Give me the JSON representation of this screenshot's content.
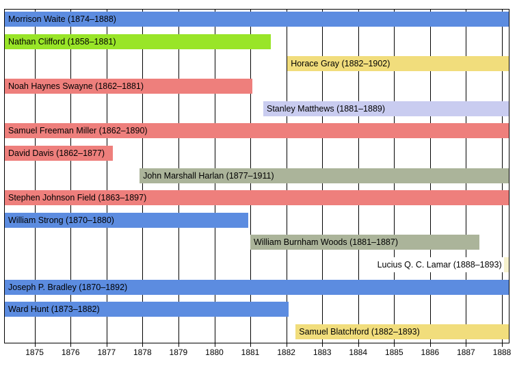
{
  "chart_data": {
    "type": "bar",
    "variant": "horizontal-timeline-gantt",
    "title": "",
    "xlabel": "",
    "ylabel": "",
    "grid": "vertical-solid-black",
    "x_axis": {
      "min": 1874.17,
      "max": 1888.19,
      "ticks": [
        1875,
        1876,
        1877,
        1878,
        1879,
        1880,
        1881,
        1882,
        1883,
        1884,
        1885,
        1886,
        1887,
        1888
      ]
    },
    "bars": [
      {
        "name": "morrison-waite",
        "label": "Morrison Waite (1874–1888)",
        "start": 1874.17,
        "end": 1888.22,
        "color": "#5c8ce0",
        "label_position": "inside"
      },
      {
        "name": "nathan-clifford",
        "label": "Nathan Clifford (1858–1881)",
        "start": 1858.5,
        "end": 1881.56,
        "color": "#99e528",
        "label_position": "inside"
      },
      {
        "name": "horace-gray",
        "label": "Horace Gray (1882–1902)",
        "start": 1882.03,
        "end": 1902.5,
        "color": "#f1dd7c",
        "label_position": "inside"
      },
      {
        "name": "noah-haynes-swayne",
        "label": "Noah Haynes Swayne (1862–1881)",
        "start": 1862.06,
        "end": 1881.05,
        "color": "#ee7f7c",
        "label_position": "inside"
      },
      {
        "name": "stanley-matthews",
        "label": "Stanley Matthews (1881–1889)",
        "start": 1881.36,
        "end": 1889.2,
        "color": "#c9ccf0",
        "label_position": "inside"
      },
      {
        "name": "samuel-freeman-miller",
        "label": "Samuel Freeman Miller (1862–1890)",
        "start": 1862.54,
        "end": 1890.8,
        "color": "#ee7f7c",
        "label_position": "inside"
      },
      {
        "name": "david-davis",
        "label": "David Davis (1862–1877)",
        "start": 1862.8,
        "end": 1877.18,
        "color": "#ee7f7c",
        "label_position": "inside"
      },
      {
        "name": "john-marshall-harlan",
        "label": "John Marshall Harlan (1877–1911)",
        "start": 1877.92,
        "end": 1911.8,
        "color": "#abb49a",
        "label_position": "inside"
      },
      {
        "name": "stephen-johnson-field",
        "label": "Stephen Johnson Field (1863–1897)",
        "start": 1863.37,
        "end": 1897.9,
        "color": "#ee7f7c",
        "label_position": "inside"
      },
      {
        "name": "william-strong",
        "label": "William Strong (1870–1880)",
        "start": 1870.17,
        "end": 1880.95,
        "color": "#5c8ce0",
        "label_position": "inside"
      },
      {
        "name": "william-burnham-woods",
        "label": "William Burnham Woods (1881–1887)",
        "start": 1881.0,
        "end": 1887.37,
        "color": "#abb49a",
        "label_position": "inside"
      },
      {
        "name": "lucius-q-c-lamar",
        "label": "Lucius Q. C. Lamar (1888–1893)",
        "start": 1888.05,
        "end": 1893.1,
        "color": "#f6f1cc",
        "label_position": "outside-left"
      },
      {
        "name": "joseph-p-bradley",
        "label": "Joseph P. Bradley (1870–1892)",
        "start": 1870.22,
        "end": 1892.1,
        "color": "#5c8ce0",
        "label_position": "inside"
      },
      {
        "name": "ward-hunt",
        "label": "Ward Hunt (1873–1882)",
        "start": 1873.0,
        "end": 1882.07,
        "color": "#5c8ce0",
        "label_position": "inside"
      },
      {
        "name": "samuel-blatchford",
        "label": "Samuel Blatchford (1882–1893)",
        "start": 1882.26,
        "end": 1893.5,
        "color": "#f1dd7c",
        "label_position": "inside"
      }
    ]
  },
  "colors": {
    "background": "#ffffff",
    "frame": "#000000",
    "gridline": "#000000",
    "text": "#000000"
  }
}
